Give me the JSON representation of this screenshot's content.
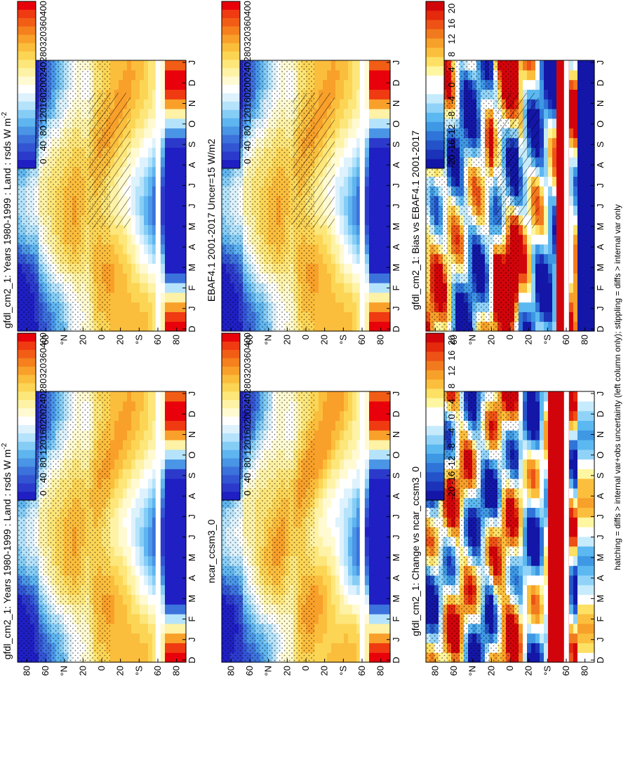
{
  "figure": {
    "footer": "hatching = diffs > internal var+obs uncertainty (left column only); stippling = diffs > internal var only",
    "orientation": "rotated 90 degrees clockwise",
    "palettes": {
      "abs": [
        "#e8000b",
        "#ef3a12",
        "#f25d16",
        "#f5801d",
        "#f8a02a",
        "#fbbd3c",
        "#fcd555",
        "#fde67a",
        "#fef2a6",
        "#fffad2",
        "#ffffff",
        "#ddf2fd",
        "#b5e3fb",
        "#86cdf6",
        "#5fb5ef",
        "#4a95e5",
        "#3c72db",
        "#3355d3",
        "#2c3acc",
        "#1f1fc4"
      ],
      "diff": [
        "#d2040b",
        "#e4290c",
        "#ee5216",
        "#f27a1e",
        "#f7a02a",
        "#fbbf3d",
        "#fde064",
        "#fef6a0",
        "#ffffff",
        "#ffffff",
        "#c6ebfc",
        "#91d3f8",
        "#5cb8f0",
        "#3e98e4",
        "#2f74d8",
        "#2352c9",
        "#1b33b8",
        "#1316a6"
      ]
    },
    "months": [
      "D",
      "J",
      "F",
      "M",
      "A",
      "M",
      "J",
      "J",
      "A",
      "S",
      "O",
      "N",
      "D",
      "J"
    ],
    "lat_ticks": [
      "80",
      "60",
      "°N",
      "20",
      "0",
      "20",
      "°S",
      "60",
      "80"
    ],
    "abs_ticks": [
      "400",
      "360",
      "320",
      "280",
      "240",
      "200",
      "160",
      "120",
      "80",
      "40",
      "0"
    ],
    "diff_ticks": [
      "20",
      "16",
      "12",
      "8",
      "4",
      "0",
      "-4",
      "-8",
      "-12",
      "-16",
      "-20"
    ]
  },
  "chart_data": [
    {
      "id": "left-top",
      "type": "heatmap",
      "palette": "abs",
      "title_text": "gfdl_cm2_1: Years 1980-1999 : Land : rsds W m",
      "title_sup": "-2",
      "x": "month (D..J)",
      "y": "latitude (80N..80S)",
      "zrange": [
        0,
        420
      ],
      "hatching": true,
      "stippling": true
    },
    {
      "id": "left-mid",
      "type": "heatmap",
      "palette": "abs",
      "title_text": "EBAF4.1 2001-2017 Uncer=15 W/m2",
      "title_sup": "",
      "zrange": [
        0,
        420
      ],
      "hatching": true,
      "stippling": true
    },
    {
      "id": "left-bot",
      "type": "heatmap",
      "palette": "diff",
      "title_text": "gfdl_cm2_1: Bias vs EBAF4.1 2001-2017",
      "title_sup": "",
      "zrange": [
        -22,
        22
      ],
      "hatching": true,
      "stippling": true
    },
    {
      "id": "right-top",
      "type": "heatmap",
      "palette": "abs",
      "title_text": "gfdl_cm2_1: Years 1980-1999 : Land : rsds W m",
      "title_sup": "-2",
      "zrange": [
        0,
        420
      ],
      "hatching": false,
      "stippling": true
    },
    {
      "id": "right-mid",
      "type": "heatmap",
      "palette": "abs",
      "title_text": "ncar_ccsm3_0",
      "title_sup": "",
      "zrange": [
        0,
        420
      ],
      "hatching": false,
      "stippling": true
    },
    {
      "id": "right-bot",
      "type": "heatmap",
      "palette": "diff",
      "title_text": "gfdl_cm2_1: Change vs ncar_ccsm3_0",
      "title_sup": "",
      "zrange": [
        -22,
        22
      ],
      "hatching": false,
      "stippling": true
    }
  ]
}
